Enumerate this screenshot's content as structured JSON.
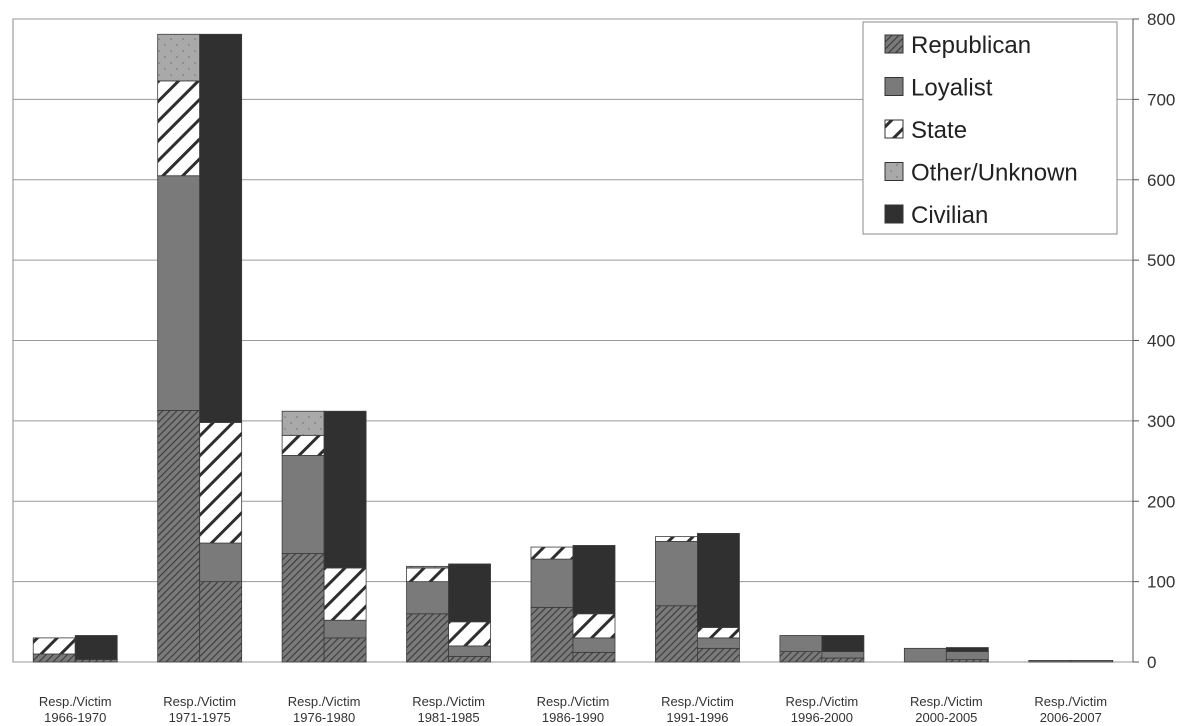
{
  "chart_data": {
    "type": "bar",
    "stacked": true,
    "grouped": true,
    "group_members": [
      "Resp.",
      "Victim"
    ],
    "categories": [
      [
        "Resp./Victim",
        "1966-1970"
      ],
      [
        "Resp./Victim",
        "1971-1975"
      ],
      [
        "Resp./Victim",
        "1976-1980"
      ],
      [
        "Resp./Victim",
        "1981-1985"
      ],
      [
        "Resp./Victim",
        "1986-1990"
      ],
      [
        "Resp./Victim",
        "1991-1996"
      ],
      [
        "Resp./Victim",
        "1996-2000"
      ],
      [
        "Resp./Victim",
        "2000-2005"
      ],
      [
        "Resp./Victim",
        "2006-2007"
      ]
    ],
    "series": [
      {
        "name": "Republican",
        "color": "#6e6e6e",
        "pattern": "hatch-dense",
        "resp": [
          10,
          313,
          135,
          60,
          68,
          70,
          13,
          0,
          0
        ],
        "victim": [
          3,
          100,
          30,
          7,
          12,
          17,
          5,
          3,
          0
        ]
      },
      {
        "name": "Loyalist",
        "color": "#7a7a7a",
        "pattern": "solid",
        "resp": [
          0,
          292,
          122,
          40,
          60,
          80,
          20,
          17,
          2
        ],
        "victim": [
          0,
          48,
          22,
          13,
          18,
          13,
          8,
          10,
          2
        ]
      },
      {
        "name": "State",
        "color": "#ffffff",
        "pattern": "hatch-wide",
        "resp": [
          20,
          118,
          25,
          17,
          15,
          6,
          0,
          0,
          0
        ],
        "victim": [
          0,
          150,
          65,
          30,
          30,
          13,
          0,
          0,
          0
        ]
      },
      {
        "name": "Other/Unknown",
        "color": "#a8a8a8",
        "pattern": "dots",
        "resp": [
          0,
          58,
          30,
          2,
          0,
          0,
          0,
          0,
          0
        ],
        "victim": [
          0,
          0,
          0,
          0,
          0,
          0,
          0,
          0,
          0
        ]
      },
      {
        "name": "Civilian",
        "color": "#303030",
        "pattern": "solid",
        "resp": [
          0,
          0,
          0,
          0,
          0,
          0,
          0,
          0,
          0
        ],
        "victim": [
          30,
          483,
          195,
          72,
          85,
          117,
          20,
          5,
          0
        ]
      }
    ],
    "y_axis": {
      "ylim": [
        0,
        800
      ],
      "ticks": [
        0,
        100,
        200,
        300,
        400,
        500,
        600,
        700,
        800
      ],
      "position": "right"
    },
    "grid": true,
    "legend_position": "top-right",
    "title": "",
    "xlabel": "",
    "ylabel": ""
  }
}
